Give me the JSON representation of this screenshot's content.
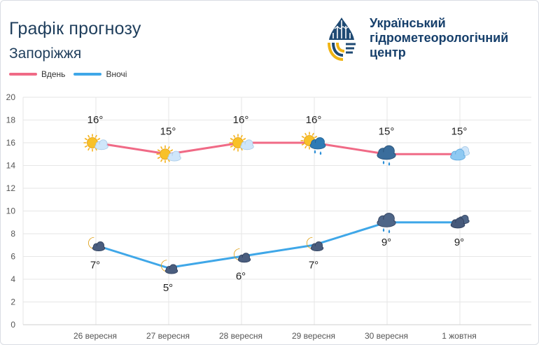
{
  "header": {
    "title": "Графік прогнозу",
    "city": "Запоріжжя"
  },
  "logo": {
    "lines": [
      "Український",
      "гідрометеорологічний",
      "центр"
    ]
  },
  "legend": [
    {
      "label": "Вдень",
      "color": "#f06a86"
    },
    {
      "label": "Вночі",
      "color": "#3fa7e8"
    }
  ],
  "chart_data": {
    "type": "line",
    "categories": [
      "26 вересня",
      "27 вересня",
      "28 вересня",
      "29 вересня",
      "30 вересня",
      "1 жовтня"
    ],
    "series": [
      {
        "name": "Вдень",
        "color": "#f06a86",
        "values": [
          16,
          15,
          16,
          16,
          15,
          15
        ],
        "labels": [
          "16°",
          "15°",
          "16°",
          "16°",
          "15°",
          "15°"
        ],
        "icons": [
          "sun-cloud-icon",
          "sun-cloud-icon",
          "sun-cloud-icon",
          "sun-rain-cloud-icon",
          "rain-cloud-icon",
          "cloudy-icon"
        ]
      },
      {
        "name": "Вночі",
        "color": "#3fa7e8",
        "values": [
          7,
          5,
          6,
          7,
          9,
          9
        ],
        "labels": [
          "7°",
          "5°",
          "6°",
          "7°",
          "9°",
          "9°"
        ],
        "icons": [
          "moon-cloud-icon",
          "moon-cloud-icon",
          "moon-cloud-icon",
          "moon-cloud-icon",
          "night-rain-cloud-icon",
          "night-cloud-icon"
        ]
      }
    ],
    "y_ticks": [
      0,
      2,
      4,
      6,
      8,
      10,
      12,
      14,
      16,
      18,
      20
    ],
    "ylim": [
      0,
      20
    ],
    "grid": true,
    "legend": "top-left"
  }
}
